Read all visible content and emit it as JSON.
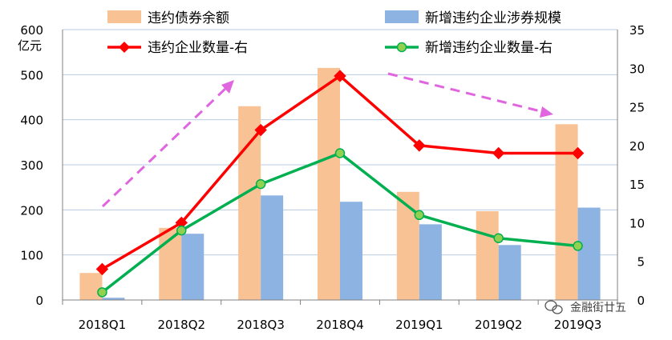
{
  "chart_data": {
    "type": "bar",
    "title": "",
    "categories": [
      "2018Q1",
      "2018Q2",
      "2018Q3",
      "2018Q4",
      "2019Q1",
      "2019Q2",
      "2019Q3"
    ],
    "y_left": {
      "unit_label": "亿元",
      "ylim": [
        0,
        600
      ],
      "ticks": [
        0,
        100,
        200,
        300,
        400,
        500,
        600
      ]
    },
    "y_right": {
      "ylim": [
        0,
        35
      ],
      "ticks": [
        0,
        5,
        10,
        15,
        20,
        25,
        30,
        35
      ]
    },
    "series": [
      {
        "name": "违约债券余额",
        "type": "bar",
        "axis": "left",
        "color": "#f8c294",
        "values": [
          60,
          160,
          430,
          515,
          240,
          197,
          390
        ]
      },
      {
        "name": "新增违约企业涉券规模",
        "type": "bar",
        "axis": "left",
        "color": "#8db3e2",
        "values": [
          5,
          147,
          232,
          218,
          168,
          122,
          205
        ]
      },
      {
        "name": "违约企业数量-右",
        "type": "line",
        "axis": "right",
        "color": "#ff0000",
        "marker": "diamond",
        "values": [
          4,
          10,
          22,
          29,
          20,
          19,
          19
        ]
      },
      {
        "name": "新增违约企业数量-右",
        "type": "line",
        "axis": "right",
        "color": "#00b050",
        "marker": "circle",
        "values": [
          1,
          9,
          15,
          19,
          11,
          8,
          7
        ]
      }
    ],
    "annotations": [
      {
        "kind": "trend-arrow",
        "direction": "up",
        "color": "#e066e0"
      },
      {
        "kind": "trend-arrow",
        "direction": "down",
        "color": "#e066e0"
      }
    ],
    "grid": true,
    "legend_position": "top"
  },
  "watermark": {
    "text": "金融街廿五",
    "icon": "wechat-icon"
  }
}
